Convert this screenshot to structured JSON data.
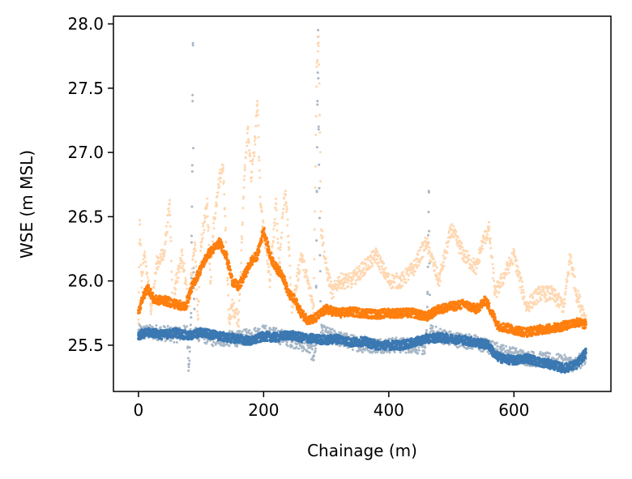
{
  "chart_data": {
    "type": "scatter",
    "title": "",
    "xlabel": "Chainage (m)",
    "ylabel": "WSE (m MSL)",
    "xlim": [
      -40,
      755
    ],
    "ylim": [
      25.14,
      28.06
    ],
    "xticks": [
      0,
      200,
      400,
      600
    ],
    "yticks": [
      25.5,
      26.0,
      26.5,
      27.0,
      27.5,
      28.0
    ],
    "x_tick_labels": [
      "0",
      "200",
      "400",
      "600"
    ],
    "y_tick_labels": [
      "25.5",
      "26.0",
      "26.5",
      "27.0",
      "27.5",
      "28.0"
    ],
    "grid": false,
    "legend": "none",
    "series": [
      {
        "color": "#a7b7c7",
        "role": "raw-lower",
        "points": [
          [
            0,
            25.6
          ],
          [
            30,
            25.6
          ],
          [
            60,
            25.58
          ],
          [
            78,
            25.6
          ],
          [
            80,
            25.35
          ],
          [
            82,
            25.45
          ],
          [
            84,
            25.75
          ],
          [
            85,
            26.3
          ],
          [
            86,
            26.9
          ],
          [
            86.5,
            27.4
          ],
          [
            87,
            27.85
          ],
          [
            88,
            26.1
          ],
          [
            90,
            25.6
          ],
          [
            120,
            25.55
          ],
          [
            160,
            25.55
          ],
          [
            200,
            25.6
          ],
          [
            240,
            25.55
          ],
          [
            270,
            25.5
          ],
          [
            280,
            25.42
          ],
          [
            283,
            25.5
          ],
          [
            284,
            25.95
          ],
          [
            285,
            26.7
          ],
          [
            286,
            27.4
          ],
          [
            287,
            27.9
          ],
          [
            288,
            27.2
          ],
          [
            290,
            26.2
          ],
          [
            292,
            25.6
          ],
          [
            320,
            25.55
          ],
          [
            360,
            25.5
          ],
          [
            400,
            25.5
          ],
          [
            440,
            25.5
          ],
          [
            458,
            25.48
          ],
          [
            460,
            25.55
          ],
          [
            462,
            25.9
          ],
          [
            463,
            26.3
          ],
          [
            464,
            26.7
          ],
          [
            466,
            25.6
          ],
          [
            500,
            25.55
          ],
          [
            540,
            25.52
          ],
          [
            580,
            25.45
          ],
          [
            620,
            25.4
          ],
          [
            660,
            25.38
          ],
          [
            700,
            25.35
          ],
          [
            715,
            25.42
          ]
        ]
      },
      {
        "color": "#ffd7b0",
        "role": "raw-upper",
        "points": [
          [
            0,
            25.7
          ],
          [
            2,
            26.44
          ],
          [
            5,
            26.0
          ],
          [
            10,
            26.2
          ],
          [
            20,
            25.8
          ],
          [
            30,
            26.15
          ],
          [
            40,
            26.2
          ],
          [
            50,
            26.6
          ],
          [
            55,
            25.8
          ],
          [
            60,
            26.0
          ],
          [
            70,
            26.2
          ],
          [
            80,
            25.8
          ],
          [
            90,
            26.3
          ],
          [
            95,
            25.7
          ],
          [
            100,
            26.3
          ],
          [
            110,
            26.6
          ],
          [
            115,
            26.0
          ],
          [
            120,
            26.45
          ],
          [
            125,
            26.6
          ],
          [
            130,
            26.8
          ],
          [
            135,
            26.9
          ],
          [
            140,
            26.3
          ],
          [
            145,
            25.7
          ],
          [
            150,
            25.8
          ],
          [
            160,
            25.7
          ],
          [
            165,
            26.3
          ],
          [
            170,
            26.9
          ],
          [
            175,
            27.2
          ],
          [
            180,
            26.8
          ],
          [
            185,
            27.0
          ],
          [
            190,
            27.4
          ],
          [
            195,
            26.6
          ],
          [
            200,
            26.4
          ],
          [
            205,
            26.2
          ],
          [
            210,
            26.0
          ],
          [
            220,
            26.6
          ],
          [
            225,
            26.1
          ],
          [
            230,
            26.5
          ],
          [
            235,
            26.7
          ],
          [
            240,
            26.3
          ],
          [
            245,
            25.8
          ],
          [
            250,
            25.9
          ],
          [
            260,
            26.2
          ],
          [
            270,
            26.0
          ],
          [
            280,
            25.8
          ],
          [
            285,
            27.7
          ],
          [
            288,
            27.9
          ],
          [
            292,
            26.4
          ],
          [
            300,
            26.1
          ],
          [
            310,
            25.9
          ],
          [
            320,
            26.0
          ],
          [
            340,
            26.0
          ],
          [
            360,
            26.1
          ],
          [
            380,
            26.2
          ],
          [
            400,
            26.0
          ],
          [
            420,
            26.0
          ],
          [
            440,
            26.1
          ],
          [
            460,
            26.3
          ],
          [
            480,
            26.0
          ],
          [
            500,
            26.4
          ],
          [
            520,
            26.2
          ],
          [
            540,
            26.1
          ],
          [
            550,
            26.3
          ],
          [
            560,
            26.4
          ],
          [
            570,
            25.9
          ],
          [
            600,
            26.2
          ],
          [
            620,
            25.8
          ],
          [
            640,
            25.9
          ],
          [
            660,
            25.9
          ],
          [
            680,
            25.8
          ],
          [
            690,
            26.2
          ],
          [
            700,
            25.9
          ],
          [
            715,
            25.7
          ]
        ]
      },
      {
        "color": "#3b78b2",
        "role": "lower",
        "points": [
          [
            0,
            25.58
          ],
          [
            20,
            25.6
          ],
          [
            40,
            25.58
          ],
          [
            60,
            25.6
          ],
          [
            80,
            25.57
          ],
          [
            100,
            25.6
          ],
          [
            120,
            25.58
          ],
          [
            140,
            25.56
          ],
          [
            160,
            25.55
          ],
          [
            180,
            25.53
          ],
          [
            200,
            25.57
          ],
          [
            220,
            25.56
          ],
          [
            240,
            25.58
          ],
          [
            260,
            25.56
          ],
          [
            280,
            25.55
          ],
          [
            300,
            25.54
          ],
          [
            320,
            25.55
          ],
          [
            340,
            25.52
          ],
          [
            360,
            25.53
          ],
          [
            380,
            25.5
          ],
          [
            400,
            25.5
          ],
          [
            420,
            25.5
          ],
          [
            440,
            25.52
          ],
          [
            460,
            25.55
          ],
          [
            480,
            25.56
          ],
          [
            500,
            25.55
          ],
          [
            520,
            25.54
          ],
          [
            540,
            25.52
          ],
          [
            560,
            25.5
          ],
          [
            570,
            25.42
          ],
          [
            580,
            25.4
          ],
          [
            600,
            25.38
          ],
          [
            620,
            25.4
          ],
          [
            640,
            25.37
          ],
          [
            660,
            25.35
          ],
          [
            680,
            25.32
          ],
          [
            700,
            25.35
          ],
          [
            715,
            25.44
          ]
        ]
      },
      {
        "color": "#ff7f0e",
        "role": "upper",
        "points": [
          [
            0,
            25.75
          ],
          [
            5,
            25.85
          ],
          [
            15,
            25.95
          ],
          [
            25,
            25.85
          ],
          [
            40,
            25.85
          ],
          [
            60,
            25.82
          ],
          [
            75,
            25.8
          ],
          [
            85,
            25.95
          ],
          [
            90,
            26.0
          ],
          [
            100,
            26.1
          ],
          [
            110,
            26.2
          ],
          [
            120,
            26.25
          ],
          [
            130,
            26.3
          ],
          [
            140,
            26.2
          ],
          [
            150,
            26.0
          ],
          [
            160,
            25.95
          ],
          [
            170,
            26.05
          ],
          [
            180,
            26.15
          ],
          [
            190,
            26.2
          ],
          [
            200,
            26.4
          ],
          [
            210,
            26.2
          ],
          [
            220,
            26.1
          ],
          [
            230,
            26.05
          ],
          [
            240,
            25.9
          ],
          [
            250,
            25.85
          ],
          [
            260,
            25.75
          ],
          [
            270,
            25.7
          ],
          [
            280,
            25.7
          ],
          [
            300,
            25.78
          ],
          [
            320,
            25.75
          ],
          [
            340,
            25.76
          ],
          [
            360,
            25.75
          ],
          [
            380,
            25.74
          ],
          [
            400,
            25.75
          ],
          [
            420,
            25.75
          ],
          [
            440,
            25.75
          ],
          [
            460,
            25.72
          ],
          [
            480,
            25.78
          ],
          [
            500,
            25.8
          ],
          [
            520,
            25.82
          ],
          [
            540,
            25.78
          ],
          [
            555,
            25.85
          ],
          [
            565,
            25.75
          ],
          [
            575,
            25.65
          ],
          [
            600,
            25.62
          ],
          [
            620,
            25.6
          ],
          [
            640,
            25.62
          ],
          [
            660,
            25.63
          ],
          [
            680,
            25.65
          ],
          [
            700,
            25.68
          ],
          [
            715,
            25.66
          ]
        ]
      }
    ]
  }
}
